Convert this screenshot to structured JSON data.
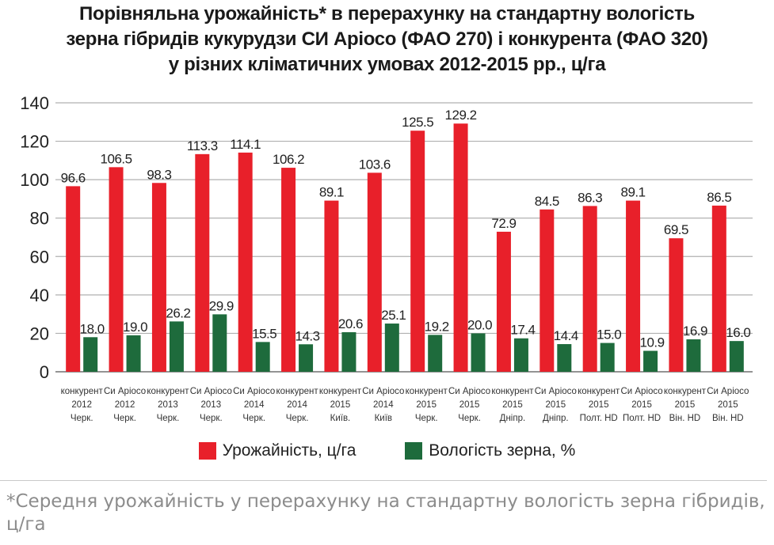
{
  "title": {
    "line1": "Порівняльна урожайність* в перерахунку на стандартну вологість",
    "line2": "зерна гібридів кукурудзи СИ Аріосо (ФАО 270) і конкурента (ФАО 320)",
    "line3": "у різних кліматичних умовах 2012-2015 рр., ц/га"
  },
  "legend": {
    "yield_label": "Урожайність, ц/га",
    "moisture_label": "Вологість зерна, %"
  },
  "footnote": "*Середня урожайність у перерахунку на стандартну вологість зерна гібридів, ц/га",
  "colors": {
    "yield": "#e8202a",
    "moisture": "#1e6b3c",
    "grid": "#b0b0b0"
  },
  "chart_data": {
    "type": "bar",
    "categories": [
      [
        "конкурент",
        "2012",
        "Черк."
      ],
      [
        "Си Аріосо",
        "2012",
        "Черк."
      ],
      [
        "конкурент",
        "2013",
        "Черк."
      ],
      [
        "Си Аріосо",
        "2013",
        "Черк."
      ],
      [
        "Си Аріосо",
        "2014",
        "Черк."
      ],
      [
        "конкурент",
        "2014",
        "Черк."
      ],
      [
        "конкурент",
        "2015",
        "Київ."
      ],
      [
        "Си Аріосо",
        "2014",
        "Київ"
      ],
      [
        "конкурент",
        "2015",
        "Черк."
      ],
      [
        "Си Аріосо",
        "2015",
        "Черк."
      ],
      [
        "конкурент",
        "2015",
        "Дніпр."
      ],
      [
        "Си Аріосо",
        "2015",
        "Дніпр."
      ],
      [
        "конкурент",
        "2015",
        "Полт. HD"
      ],
      [
        "Си Аріосо",
        "2015",
        "Полт. HD"
      ],
      [
        "конкурент",
        "2015",
        "Він. HD"
      ],
      [
        "Си Аріосо",
        "2015",
        "Він. HD"
      ]
    ],
    "series": [
      {
        "name": "Урожайність, ц/га",
        "values": [
          96.6,
          106.5,
          98.3,
          113.3,
          114.1,
          106.2,
          89.1,
          103.6,
          125.5,
          129.2,
          72.9,
          84.5,
          86.3,
          89.1,
          69.5,
          86.5
        ],
        "labels": [
          "96.6",
          "106.5",
          "98.3",
          "113.3",
          "114.1",
          "106.2",
          "89.1",
          "103.6",
          "125.5",
          "129.2",
          "72.9",
          "84.5",
          "86.3",
          "89.1",
          "69.5",
          "86.5"
        ]
      },
      {
        "name": "Вологість зерна, %",
        "values": [
          18.0,
          19.0,
          26.2,
          29.9,
          15.5,
          14.3,
          20.6,
          25.1,
          19.2,
          20.0,
          17.4,
          14.4,
          15.0,
          10.9,
          16.9,
          16.0
        ],
        "labels": [
          "18.0",
          "19.0",
          "26.2",
          "29.9",
          "15.5",
          "14.3",
          "20.6",
          "25.1",
          "19.2",
          "20.0",
          "17.4",
          "14.4",
          "15.0",
          "10.9",
          "16.9",
          "16.0"
        ]
      }
    ],
    "yticks": [
      "0",
      "20",
      "40",
      "60",
      "80",
      "100",
      "120",
      "140"
    ],
    "ylim": [
      0,
      140
    ],
    "grid": true,
    "legend_position": "bottom"
  }
}
